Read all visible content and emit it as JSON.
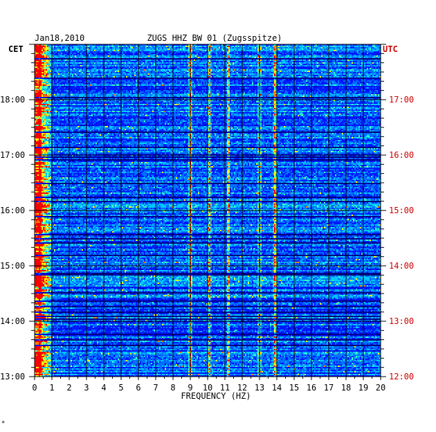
{
  "chart_data": {
    "type": "heatmap",
    "date": "Jan18,2010",
    "title": "ZUGS HHZ BW 01 (Zugsspitze)",
    "left_axis_label": "CET",
    "right_axis_label": "UTC",
    "xlabel": "FREQUENCY (HZ)",
    "xlim": [
      0,
      20
    ],
    "x_ticks": [
      "0",
      "1",
      "2",
      "3",
      "4",
      "5",
      "6",
      "7",
      "8",
      "9",
      "10",
      "11",
      "12",
      "13",
      "14",
      "15",
      "16",
      "17",
      "18",
      "19",
      "20"
    ],
    "ylim_utc_hours": [
      12,
      18
    ],
    "left_ticks": [
      {
        "hour": 17,
        "label": "18:00"
      },
      {
        "hour": 16,
        "label": "17:00"
      },
      {
        "hour": 15,
        "label": "16:00"
      },
      {
        "hour": 14,
        "label": "15:00"
      },
      {
        "hour": 13,
        "label": "14:00"
      },
      {
        "hour": 12,
        "label": "13:00"
      }
    ],
    "right_ticks": [
      {
        "hour": 17,
        "label": "17:00"
      },
      {
        "hour": 16,
        "label": "16:00"
      },
      {
        "hour": 15,
        "label": "15:00"
      },
      {
        "hour": 14,
        "label": "14:00"
      },
      {
        "hour": 13,
        "label": "13:00"
      },
      {
        "hour": 12,
        "label": "12:00"
      }
    ],
    "grid": true,
    "colormap": [
      "#00007f",
      "#0000c8",
      "#0018ff",
      "#0070ff",
      "#00c8ff",
      "#40ffc0",
      "#ffff00",
      "#ff8000",
      "#ff0000"
    ],
    "background_color": "#0000b4",
    "right_label_color": "#cc0000",
    "strong_lines_hz": [
      0.3,
      9.0,
      10.1,
      11.2,
      13.0,
      13.9
    ],
    "footnote": "*"
  }
}
